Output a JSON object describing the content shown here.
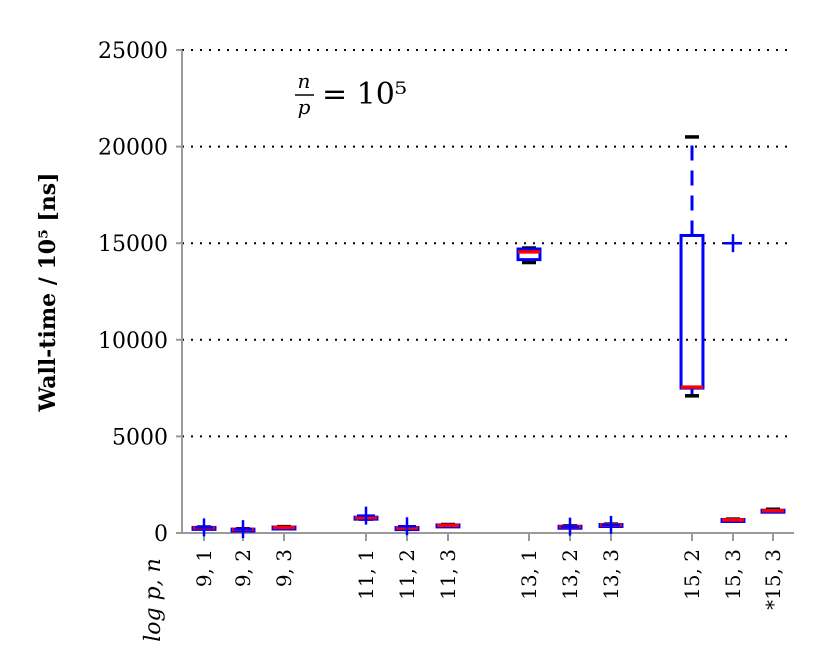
{
  "chart_data": {
    "type": "box",
    "ylabel": "Wall-time / 10⁵ [ns]",
    "xlabel": "log p, n",
    "ylim": [
      0,
      25000
    ],
    "yticks": [
      0,
      5000,
      10000,
      15000,
      20000,
      25000
    ],
    "grid": "horizontal dotted",
    "annotation": {
      "frac_num": "n",
      "frac_den": "p",
      "rhs": "= 10⁵"
    },
    "colors": {
      "box": "#0000ff",
      "median": "#ff0000",
      "whisker_cap": "#000000",
      "outlier": "#0000ff"
    },
    "boxes": [
      {
        "label": "9, 1",
        "whisker_low": 230,
        "q1": 250,
        "median": 270,
        "q3": 290,
        "whisker_high": 310,
        "outliers": [
          290
        ]
      },
      {
        "label": "9, 2",
        "whisker_low": 150,
        "q1": 170,
        "median": 185,
        "q3": 200,
        "whisker_high": 220,
        "outliers": [
          200
        ]
      },
      {
        "label": "9, 3",
        "whisker_low": 250,
        "q1": 270,
        "median": 290,
        "q3": 310,
        "whisker_high": 330,
        "outliers": []
      },
      {
        "label": "11, 1",
        "whisker_low": 720,
        "q1": 760,
        "median": 790,
        "q3": 820,
        "whisker_high": 860,
        "outliers": [
          900
        ]
      },
      {
        "label": "11, 2",
        "whisker_low": 220,
        "q1": 240,
        "median": 260,
        "q3": 280,
        "whisker_high": 300,
        "outliers": [
          350
        ]
      },
      {
        "label": "11, 3",
        "whisker_low": 360,
        "q1": 380,
        "median": 400,
        "q3": 420,
        "whisker_high": 440,
        "outliers": []
      },
      {
        "label": "13, 1",
        "whisker_low": 14000,
        "q1": 14150,
        "median": 14550,
        "q3": 14700,
        "whisker_high": 14750,
        "outliers": []
      },
      {
        "label": "13, 2",
        "whisker_low": 290,
        "q1": 310,
        "median": 330,
        "q3": 350,
        "whisker_high": 370,
        "outliers": [
          330
        ]
      },
      {
        "label": "13, 3",
        "whisker_low": 380,
        "q1": 400,
        "median": 420,
        "q3": 440,
        "whisker_high": 460,
        "outliers": [
          420
        ]
      },
      {
        "label": "15, 2",
        "whisker_low": 7100,
        "q1": 7500,
        "median": 7550,
        "q3": 15400,
        "whisker_high": 20500,
        "outliers": []
      },
      {
        "label": "15, 3",
        "whisker_low": 640,
        "q1": 660,
        "median": 680,
        "q3": 700,
        "whisker_high": 720,
        "outliers": [
          15000
        ]
      },
      {
        "label": "*15, 3",
        "whisker_low": 1100,
        "q1": 1120,
        "median": 1150,
        "q3": 1180,
        "whisker_high": 1230,
        "outliers": []
      }
    ]
  }
}
